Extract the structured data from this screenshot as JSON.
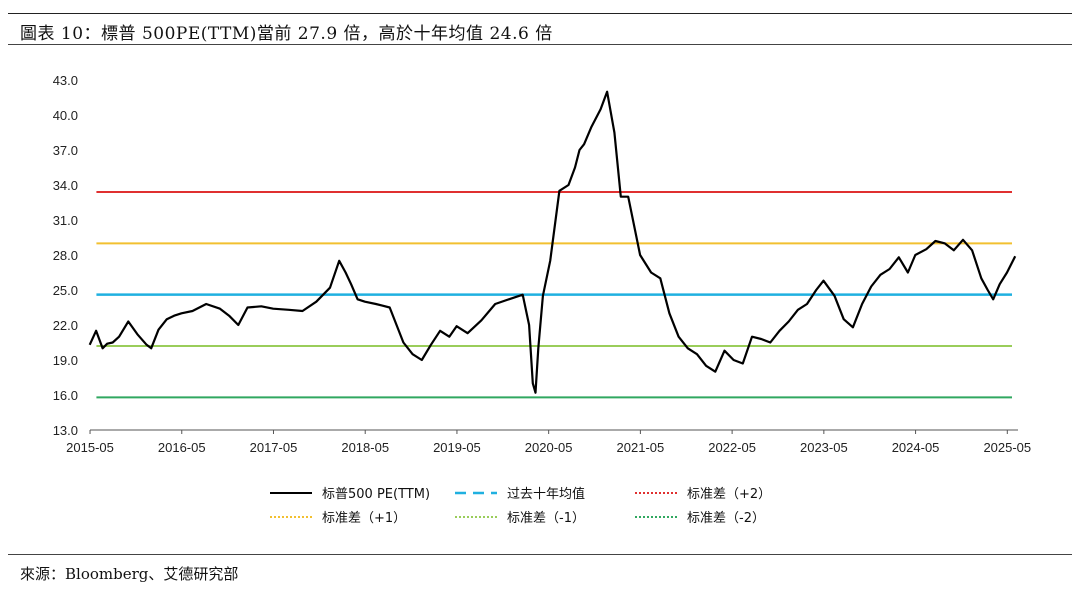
{
  "header": {
    "title": "圖表 10：標普 500PE(TTM)當前 27.9 倍，高於十年均值 24.6 倍"
  },
  "footer": {
    "source": "來源：Bloomberg、艾德研究部"
  },
  "chart_data": {
    "type": "line",
    "title": "圖表 10：標普 500PE(TTM)當前 27.9 倍，高於十年均值 24.6 倍",
    "xlabel": "",
    "ylabel": "",
    "ylim": [
      13.0,
      43.0
    ],
    "yticks": [
      "13.0",
      "16.0",
      "19.0",
      "22.0",
      "25.0",
      "28.0",
      "31.0",
      "34.0",
      "37.0",
      "40.0",
      "43.0"
    ],
    "xticks": [
      "2015-05",
      "2016-05",
      "2017-05",
      "2018-05",
      "2019-05",
      "2020-05",
      "2021-05",
      "2022-05",
      "2023-05",
      "2024-05",
      "2025-05"
    ],
    "xlim": [
      2015.333,
      2025.45
    ],
    "legend_position": "bottom",
    "series": [
      {
        "name": "标普500 PE(TTM)",
        "style": "solid",
        "color": "#000000",
        "x": [
          2015.33,
          2015.4,
          2015.47,
          2015.52,
          2015.58,
          2015.65,
          2015.75,
          2015.85,
          2015.95,
          2016.0,
          2016.08,
          2016.17,
          2016.25,
          2016.33,
          2016.45,
          2016.6,
          2016.75,
          2016.85,
          2016.95,
          2017.05,
          2017.2,
          2017.33,
          2017.5,
          2017.65,
          2017.8,
          2017.95,
          2018.05,
          2018.12,
          2018.18,
          2018.25,
          2018.33,
          2018.45,
          2018.6,
          2018.75,
          2018.85,
          2018.95,
          2019.05,
          2019.15,
          2019.25,
          2019.33,
          2019.45,
          2019.6,
          2019.75,
          2019.9,
          2020.05,
          2020.12,
          2020.16,
          2020.19,
          2020.22,
          2020.27,
          2020.35,
          2020.45,
          2020.55,
          2020.62,
          2020.67,
          2020.72,
          2020.8,
          2020.9,
          2020.97,
          2021.05,
          2021.12,
          2021.2,
          2021.33,
          2021.45,
          2021.55,
          2021.65,
          2021.75,
          2021.85,
          2021.95,
          2022.05,
          2022.15,
          2022.25,
          2022.35,
          2022.45,
          2022.55,
          2022.65,
          2022.75,
          2022.85,
          2022.95,
          2023.05,
          2023.15,
          2023.25,
          2023.33,
          2023.45,
          2023.55,
          2023.65,
          2023.75,
          2023.85,
          2023.95,
          2024.05,
          2024.15,
          2024.25,
          2024.33,
          2024.45,
          2024.55,
          2024.65,
          2024.75,
          2024.85,
          2024.95,
          2025.05,
          2025.12,
          2025.18,
          2025.25,
          2025.33,
          2025.42
        ],
        "values": [
          20.3,
          21.5,
          20.0,
          20.4,
          20.5,
          21.0,
          22.3,
          21.2,
          20.3,
          20.0,
          21.6,
          22.5,
          22.8,
          23.0,
          23.2,
          23.8,
          23.4,
          22.8,
          22.0,
          23.5,
          23.6,
          23.4,
          23.3,
          23.2,
          24.0,
          25.2,
          27.5,
          26.5,
          25.5,
          24.2,
          24.0,
          23.8,
          23.5,
          20.5,
          19.5,
          19.0,
          20.3,
          21.5,
          21.0,
          21.9,
          21.3,
          22.4,
          23.8,
          24.2,
          24.6,
          22.0,
          17.0,
          16.2,
          20.0,
          24.5,
          27.5,
          33.5,
          34.0,
          35.5,
          37.0,
          37.5,
          39.0,
          40.5,
          42.0,
          38.5,
          33.0,
          33.0,
          28.0,
          26.5,
          26.0,
          23.0,
          21.0,
          20.0,
          19.5,
          18.5,
          18.0,
          19.8,
          19.0,
          18.7,
          21.0,
          20.8,
          20.5,
          21.5,
          22.3,
          23.3,
          23.8,
          25.0,
          25.8,
          24.5,
          22.5,
          21.8,
          23.8,
          25.3,
          26.3,
          26.8,
          27.8,
          26.5,
          28.0,
          28.5,
          29.2,
          29.0,
          28.4,
          29.3,
          28.4,
          26.0,
          25.0,
          24.2,
          25.5,
          26.5,
          27.9
        ]
      },
      {
        "name": "过去十年均值",
        "style": "dashed",
        "color": "#1fb0e0",
        "value": 24.6
      },
      {
        "name": "标准差（+2）",
        "style": "dotted",
        "color": "#e03030",
        "value": 33.4
      },
      {
        "name": "标准差（+1）",
        "style": "dotted",
        "color": "#f2c030",
        "value": 29.0
      },
      {
        "name": "标准差（-1）",
        "style": "dotted",
        "color": "#9acd5a",
        "value": 20.2
      },
      {
        "name": "标准差（-2）",
        "style": "dotted",
        "color": "#30a860",
        "value": 15.8
      }
    ]
  }
}
